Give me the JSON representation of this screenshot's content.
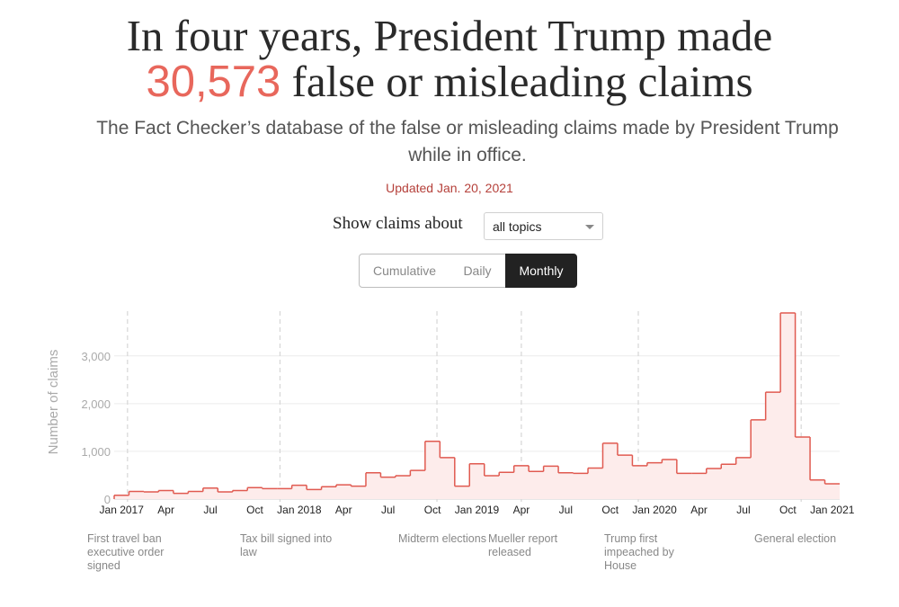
{
  "header": {
    "title_line1": "In four years, President Trump made",
    "title_count": "30,573",
    "title_rest": "false or misleading claims",
    "subtitle": "The Fact Checker’s database of the false or misleading claims made by President Trump while in office.",
    "updated": "Updated Jan. 20, 2021"
  },
  "controls": {
    "filter_label": "Show claims about",
    "filter_value": "all topics",
    "view_tabs": [
      "Cumulative",
      "Daily",
      "Monthly"
    ],
    "active_tab": "Monthly"
  },
  "colors": {
    "accent": "#e8675c",
    "line": "#e05a50",
    "fill": "#fdeceb"
  },
  "chart_data": {
    "type": "area",
    "title": "",
    "xlabel": "",
    "ylabel": "Number of claims",
    "ylim": [
      0,
      3900
    ],
    "yticks": [
      0,
      1000,
      2000,
      3000
    ],
    "ytick_labels": [
      "0",
      "1,000",
      "2,000",
      "3,000"
    ],
    "months": [
      "2017-01",
      "2017-02",
      "2017-03",
      "2017-04",
      "2017-05",
      "2017-06",
      "2017-07",
      "2017-08",
      "2017-09",
      "2017-10",
      "2017-11",
      "2017-12",
      "2018-01",
      "2018-02",
      "2018-03",
      "2018-04",
      "2018-05",
      "2018-06",
      "2018-07",
      "2018-08",
      "2018-09",
      "2018-10",
      "2018-11",
      "2018-12",
      "2019-01",
      "2019-02",
      "2019-03",
      "2019-04",
      "2019-05",
      "2019-06",
      "2019-07",
      "2019-08",
      "2019-09",
      "2019-10",
      "2019-11",
      "2019-12",
      "2020-01",
      "2020-02",
      "2020-03",
      "2020-04",
      "2020-05",
      "2020-06",
      "2020-07",
      "2020-08",
      "2020-09",
      "2020-10",
      "2020-11",
      "2020-12",
      "2021-01"
    ],
    "values": [
      80,
      160,
      150,
      180,
      120,
      160,
      230,
      150,
      180,
      240,
      220,
      220,
      290,
      200,
      260,
      300,
      270,
      550,
      460,
      490,
      600,
      1210,
      870,
      270,
      740,
      490,
      560,
      700,
      580,
      690,
      550,
      540,
      650,
      1170,
      920,
      700,
      760,
      830,
      540,
      540,
      640,
      730,
      870,
      1660,
      2240,
      3900,
      1300,
      400,
      320
    ],
    "x_tick_labels": [
      {
        "month": 0,
        "label": "Jan 2017"
      },
      {
        "month": 3,
        "label": "Apr"
      },
      {
        "month": 6,
        "label": "Jul"
      },
      {
        "month": 9,
        "label": "Oct"
      },
      {
        "month": 12,
        "label": "Jan 2018"
      },
      {
        "month": 15,
        "label": "Apr"
      },
      {
        "month": 18,
        "label": "Jul"
      },
      {
        "month": 21,
        "label": "Oct"
      },
      {
        "month": 24,
        "label": "Jan 2019"
      },
      {
        "month": 27,
        "label": "Apr"
      },
      {
        "month": 30,
        "label": "Jul"
      },
      {
        "month": 33,
        "label": "Oct"
      },
      {
        "month": 36,
        "label": "Jan 2020"
      },
      {
        "month": 39,
        "label": "Apr"
      },
      {
        "month": 42,
        "label": "Jul"
      },
      {
        "month": 45,
        "label": "Oct"
      },
      {
        "month": 48,
        "label": "Jan 2021"
      }
    ],
    "annotations": [
      {
        "month": 0.9,
        "lines": [
          "First travel ban",
          "executive order",
          "signed"
        ]
      },
      {
        "month": 11.2,
        "lines": [
          "Tax bill signed into",
          "law"
        ]
      },
      {
        "month": 21.8,
        "lines": [
          "Midterm elections"
        ]
      },
      {
        "month": 27.5,
        "lines": [
          "Mueller report",
          "released"
        ]
      },
      {
        "month": 35.4,
        "lines": [
          "Trump first",
          "impeached by",
          "House"
        ]
      },
      {
        "month": 46.4,
        "lines": [
          "General election"
        ]
      }
    ]
  }
}
